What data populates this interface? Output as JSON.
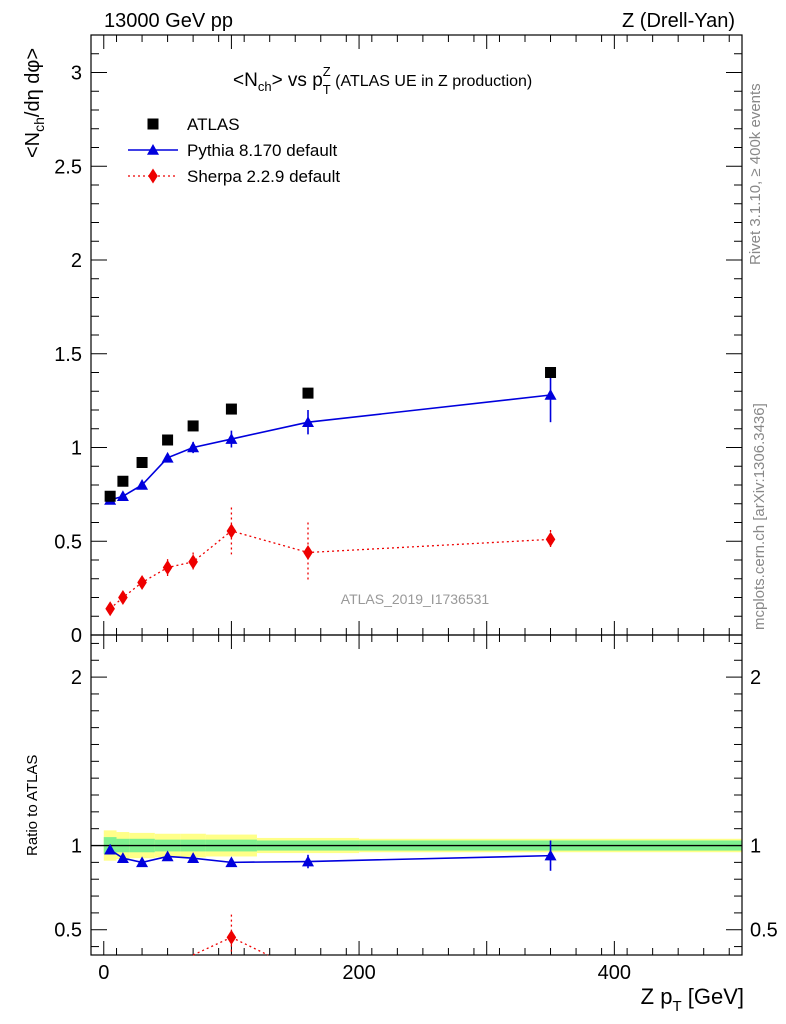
{
  "header": {
    "left": "13000 GeV pp",
    "right": "Z (Drell-Yan)"
  },
  "side_labels": {
    "rivet": "Rivet 3.1.10, ≥ 400k events",
    "mcplots": "mcplots.cern.ch [arXiv:1306.3436]"
  },
  "analysis_id": "ATLAS_2019_I1736531",
  "colors": {
    "data": "#000000",
    "pythia": "#0000dd",
    "sherpa": "#ee0000",
    "band_inner": "#7ef08f",
    "band_outer": "#ffff88"
  },
  "chart_data": [
    {
      "type": "scatter",
      "panel": "main",
      "title_parts": {
        "pre": "<N",
        "sub1": "ch",
        "mid": "> vs p",
        "sup": "Z",
        "sub2": "T",
        "post": " (ATLAS UE in Z production)"
      },
      "ylabel_parts": {
        "a": "<N",
        "sub": "ch",
        "b": "/dη dφ>"
      },
      "ylim": [
        0,
        3.2
      ],
      "xlim": [
        -10,
        500
      ],
      "yticks": [
        0,
        0.5,
        1,
        1.5,
        2,
        2.5,
        3
      ],
      "ytick_labels": [
        "0",
        "0.5",
        "1",
        "1.5",
        "2",
        "2.5",
        "3"
      ],
      "legend_placement": "top-left",
      "series": [
        {
          "name": "ATLAS",
          "style": "square",
          "x": [
            5,
            15,
            30,
            50,
            70,
            100,
            160,
            350
          ],
          "y": [
            0.74,
            0.82,
            0.92,
            1.04,
            1.115,
            1.205,
            1.29,
            1.4
          ]
        },
        {
          "name": "Pythia 8.170 default",
          "style": "triangle-line",
          "x": [
            5,
            15,
            30,
            50,
            70,
            100,
            160,
            350
          ],
          "y": [
            0.72,
            0.74,
            0.8,
            0.945,
            1.0,
            1.045,
            1.135,
            1.28
          ],
          "err": [
            0.01,
            0.01,
            0.015,
            0.02,
            0.03,
            0.045,
            0.065,
            0.145
          ]
        },
        {
          "name": "Sherpa 2.2.9 default",
          "style": "diamond-dotted",
          "x": [
            5,
            15,
            30,
            50,
            70,
            100,
            160,
            350
          ],
          "y": [
            0.14,
            0.2,
            0.28,
            0.36,
            0.39,
            0.555,
            0.44,
            0.51
          ],
          "err": [
            0.02,
            0.02,
            0.03,
            0.045,
            0.05,
            0.125,
            0.16,
            0.05
          ]
        }
      ]
    },
    {
      "type": "scatter",
      "panel": "ratio",
      "ylabel": "Ratio to ATLAS",
      "xlabel_parts": {
        "a": "Z p",
        "sub": "T",
        "b": " [GeV]"
      },
      "ylim": [
        0.35,
        2.25
      ],
      "xlim": [
        -10,
        500
      ],
      "xticks": [
        0,
        200,
        400
      ],
      "xtick_labels": [
        "0",
        "200",
        "400"
      ],
      "yticks": [
        0.5,
        1,
        2
      ],
      "ytick_labels": [
        "0.5",
        "1",
        "2"
      ],
      "bands": {
        "x_edges": [
          0,
          10,
          20,
          40,
          60,
          80,
          120,
          200,
          500
        ],
        "inner": [
          0.05,
          0.04,
          0.04,
          0.035,
          0.035,
          0.035,
          0.03,
          0.03
        ],
        "outer": [
          0.09,
          0.08,
          0.075,
          0.07,
          0.07,
          0.065,
          0.045,
          0.04
        ]
      },
      "series": [
        {
          "name": "Pythia 8.170 default",
          "x": [
            5,
            15,
            30,
            50,
            70,
            100,
            160,
            350
          ],
          "y": [
            0.975,
            0.925,
            0.9,
            0.935,
            0.925,
            0.9,
            0.905,
            0.94
          ],
          "err": [
            0.01,
            0.01,
            0.015,
            0.02,
            0.025,
            0.025,
            0.04,
            0.09
          ]
        },
        {
          "name": "Sherpa 2.2.9 default",
          "x": [
            100,
            160
          ],
          "y": [
            0.455,
            0.35
          ],
          "err": [
            0.135,
            0.0
          ]
        }
      ]
    }
  ]
}
